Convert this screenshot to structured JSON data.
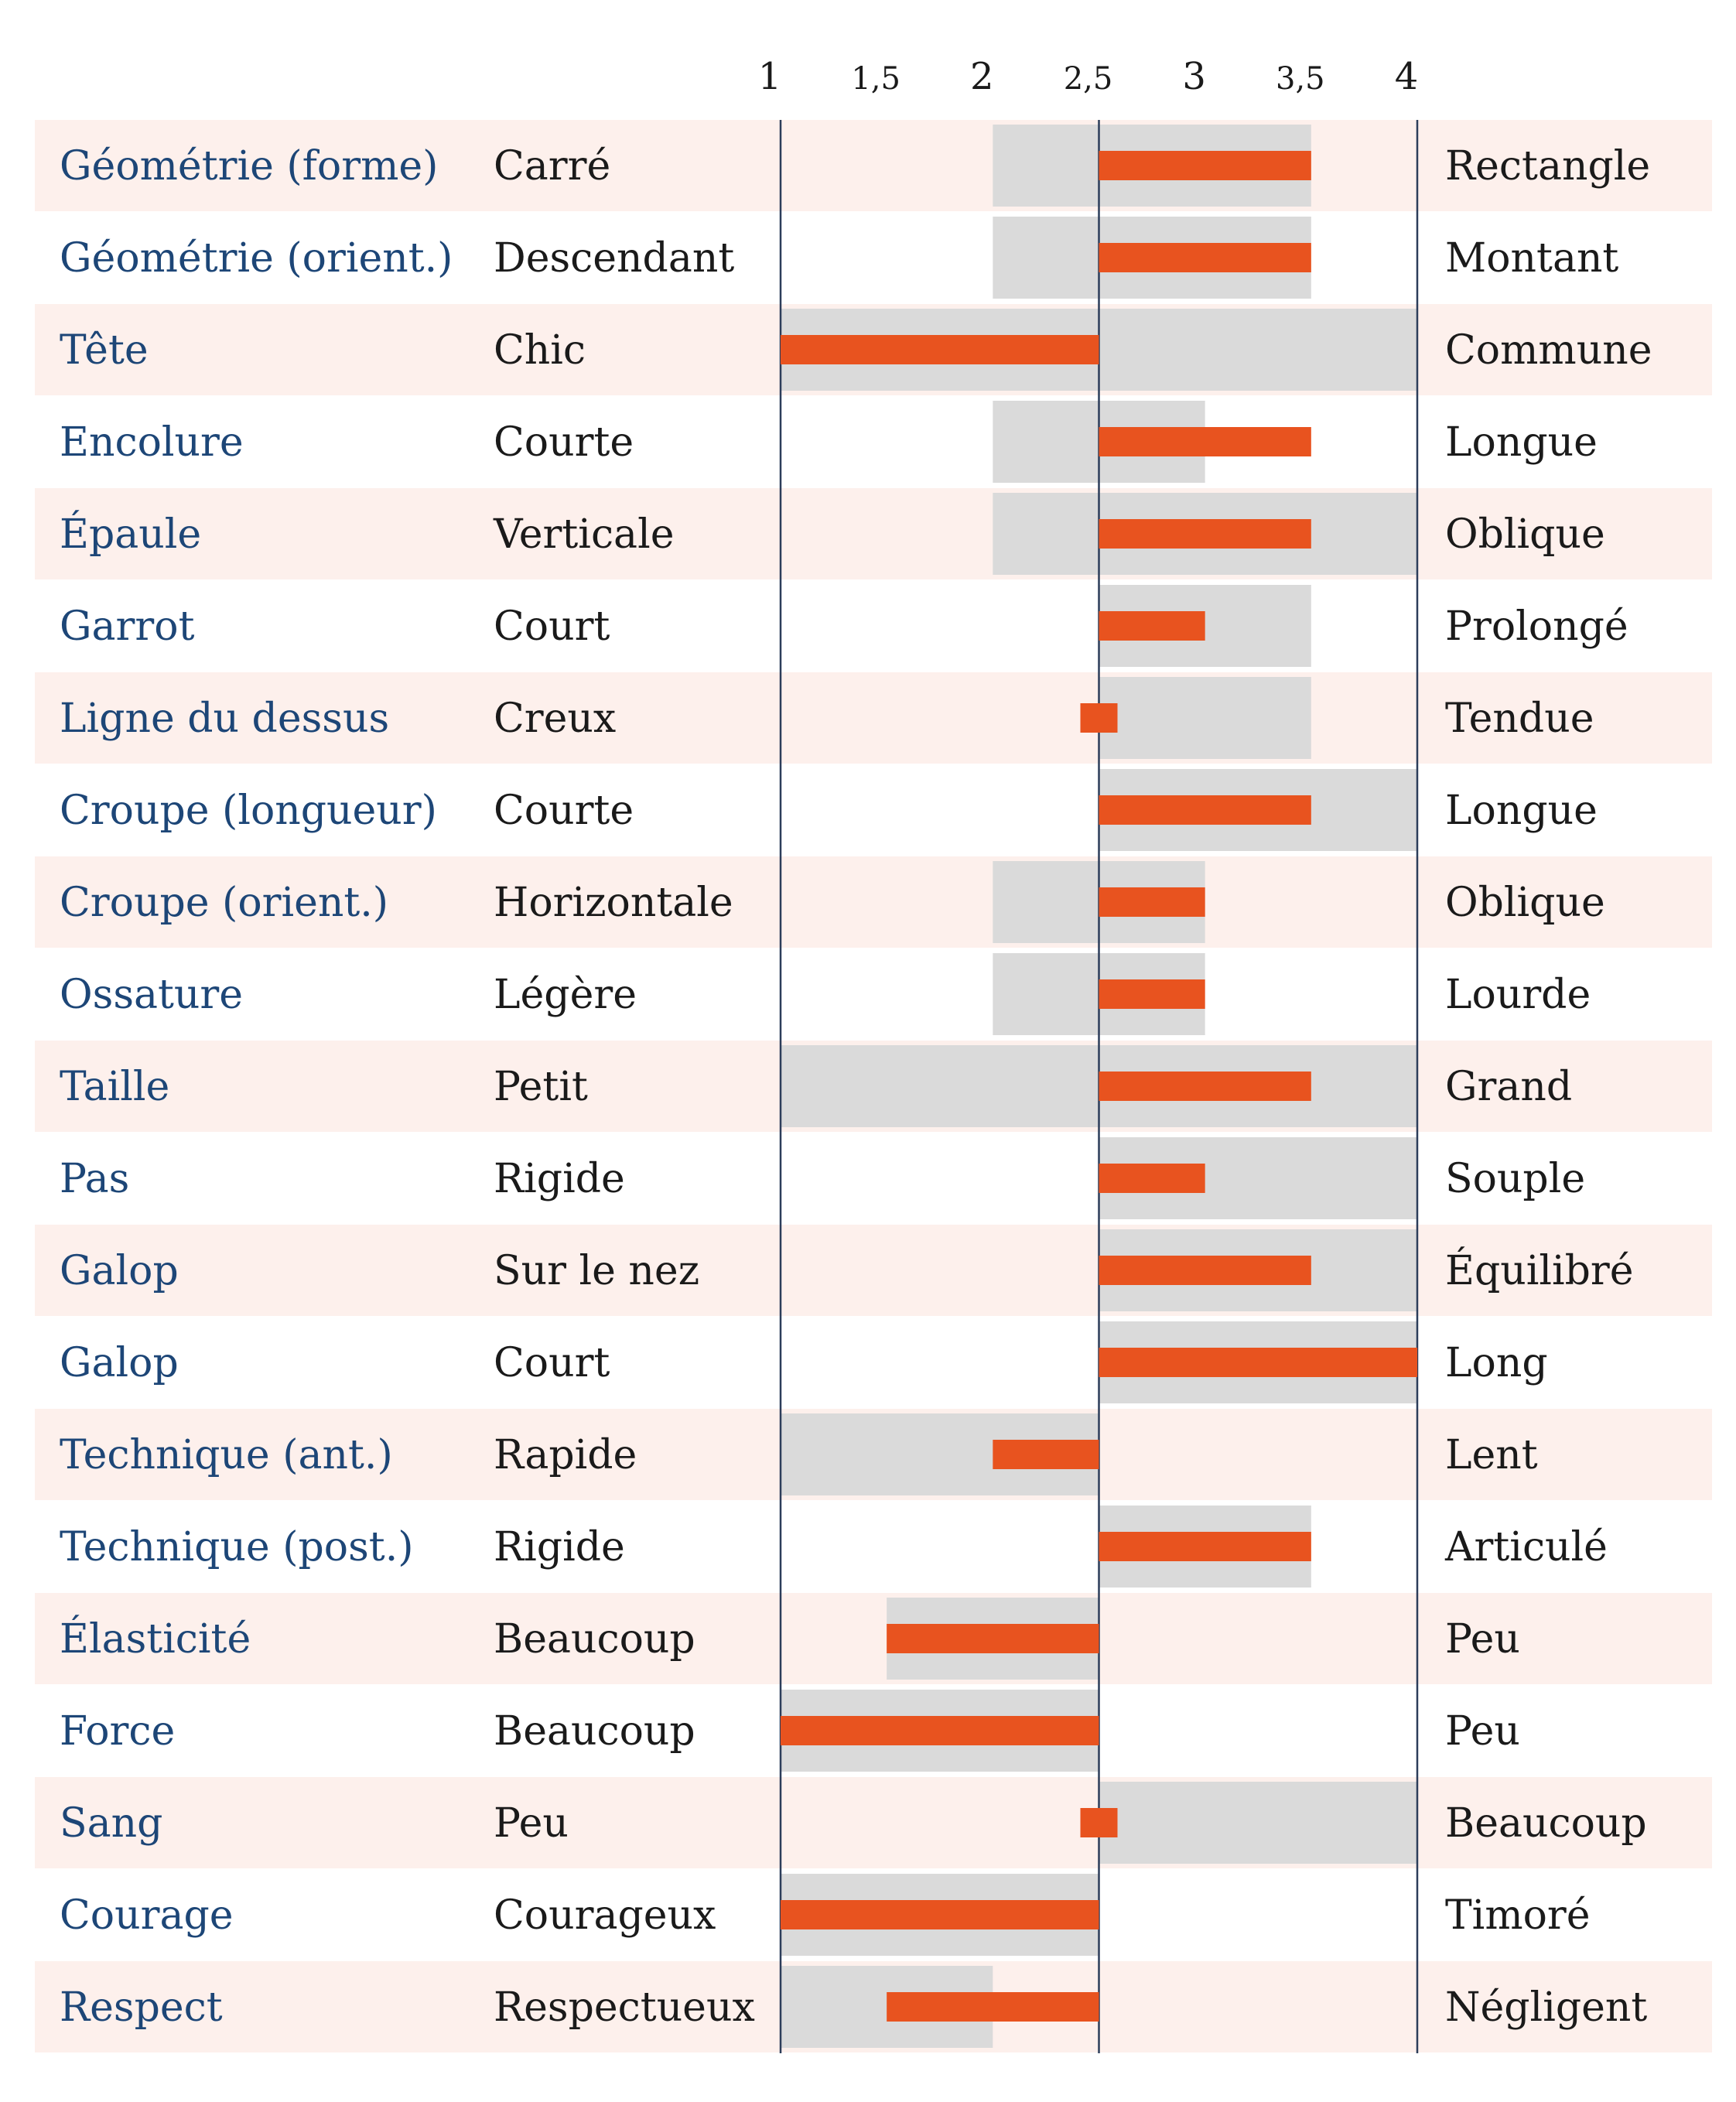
{
  "chart_data": {
    "type": "bar",
    "subtype": "bipolar-profile-range",
    "xlim": [
      1,
      4
    ],
    "ticks": [
      {
        "value": 1,
        "label": "1"
      },
      {
        "value": 1.5,
        "label": "1,5"
      },
      {
        "value": 2,
        "label": "2"
      },
      {
        "value": 2.5,
        "label": "2,5"
      },
      {
        "value": 3,
        "label": "3"
      },
      {
        "value": 3.5,
        "label": "3,5"
      },
      {
        "value": 4,
        "label": "4"
      }
    ],
    "midline": 2.5,
    "rows": [
      {
        "criterion": "Géométrie (forme)",
        "left": "Carré",
        "right": "Rectangle",
        "range": [
          2,
          3.5
        ],
        "value": 3.5
      },
      {
        "criterion": "Géométrie (orient.)",
        "left": "Descendant",
        "right": "Montant",
        "range": [
          2,
          3.5
        ],
        "value": 3.5
      },
      {
        "criterion": "Tête",
        "left": "Chic",
        "right": "Commune",
        "range": [
          1,
          4
        ],
        "value": 1
      },
      {
        "criterion": "Encolure",
        "left": "Courte",
        "right": "Longue",
        "range": [
          2,
          3
        ],
        "value": 3.5
      },
      {
        "criterion": "Épaule",
        "left": "Verticale",
        "right": "Oblique",
        "range": [
          2,
          4
        ],
        "value": 3.5
      },
      {
        "criterion": "Garrot",
        "left": "Court",
        "right": "Prolongé",
        "range": [
          2.5,
          3.5
        ],
        "value": 3
      },
      {
        "criterion": "Ligne du dessus",
        "left": "Creux",
        "right": "Tendue",
        "range": [
          2.5,
          3.5
        ],
        "value": 2.5
      },
      {
        "criterion": "Croupe (longueur)",
        "left": "Courte",
        "right": "Longue",
        "range": [
          2.5,
          4
        ],
        "value": 3.5
      },
      {
        "criterion": "Croupe (orient.)",
        "left": "Horizontale",
        "right": "Oblique",
        "range": [
          2,
          3
        ],
        "value": 3
      },
      {
        "criterion": "Ossature",
        "left": "Légère",
        "right": "Lourde",
        "range": [
          2,
          3
        ],
        "value": 3
      },
      {
        "criterion": "Taille",
        "left": "Petit",
        "right": "Grand",
        "range": [
          1,
          4
        ],
        "value": 3.5
      },
      {
        "criterion": "Pas",
        "left": "Rigide",
        "right": "Souple",
        "range": [
          2.5,
          4
        ],
        "value": 3
      },
      {
        "criterion": "Galop",
        "left": "Sur le nez",
        "right": "Équilibré",
        "range": [
          2.5,
          4
        ],
        "value": 3.5
      },
      {
        "criterion": "Galop",
        "left": "Court",
        "right": "Long",
        "range": [
          2.5,
          4
        ],
        "value": 4
      },
      {
        "criterion": "Technique (ant.)",
        "left": "Rapide",
        "right": "Lent",
        "range": [
          1,
          2.5
        ],
        "value": 2
      },
      {
        "criterion": "Technique (post.)",
        "left": "Rigide",
        "right": "Articulé",
        "range": [
          2.5,
          3.5
        ],
        "value": 3.5
      },
      {
        "criterion": "Élasticité",
        "left": "Beaucoup",
        "right": "Peu",
        "range": [
          1.5,
          2.5
        ],
        "value": 1.5
      },
      {
        "criterion": "Force",
        "left": "Beaucoup",
        "right": "Peu",
        "range": [
          1,
          2.5
        ],
        "value": 1
      },
      {
        "criterion": "Sang",
        "left": "Peu",
        "right": "Beaucoup",
        "range": [
          2.5,
          4
        ],
        "value": 2.5
      },
      {
        "criterion": "Courage",
        "left": "Courageux",
        "right": "Timoré",
        "range": [
          1,
          2.5
        ],
        "value": 1
      },
      {
        "criterion": "Respect",
        "left": "Respectueux",
        "right": "Négligent",
        "range": [
          1,
          2
        ],
        "value": 1.5
      }
    ],
    "colors": {
      "band": "#fdf0ec",
      "range": "#dadada",
      "bar": "#e8531f",
      "criterion_text": "#1d4677",
      "pole_text": "#1a1a1a",
      "axis": "#2c3d5a"
    }
  }
}
